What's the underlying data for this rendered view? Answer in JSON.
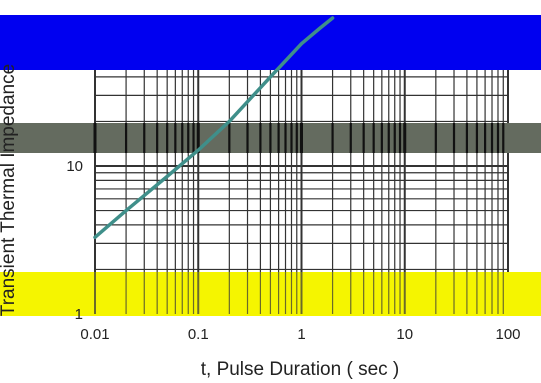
{
  "chart_data": {
    "type": "line",
    "title": "",
    "xlabel": "t, Pulse Duration ( sec )",
    "ylabel": "Transient Thermal Impedance",
    "x_scale": "log",
    "y_scale": "log",
    "xlim": [
      0.01,
      100
    ],
    "ylim": [
      1,
      100
    ],
    "x_tick_labels": [
      "0.01",
      "0.1",
      "1",
      "10",
      "100"
    ],
    "y_tick_labels": [
      "10",
      "1"
    ],
    "grid": true,
    "series": [
      {
        "x": [
          0.01,
          0.02,
          0.05,
          0.1,
          0.2,
          0.5,
          1.0,
          1.5,
          2.0
        ],
        "y": [
          3.3,
          5.0,
          8.5,
          12.8,
          20.0,
          40.0,
          67.0,
          85.0,
          100.0
        ]
      }
    ],
    "colors": {
      "series": "#3f8f8a",
      "grid": "#333333",
      "banner_top": "#0000f0",
      "banner_middle": "#646b5f",
      "banner_bottom": "#f5f500"
    }
  }
}
